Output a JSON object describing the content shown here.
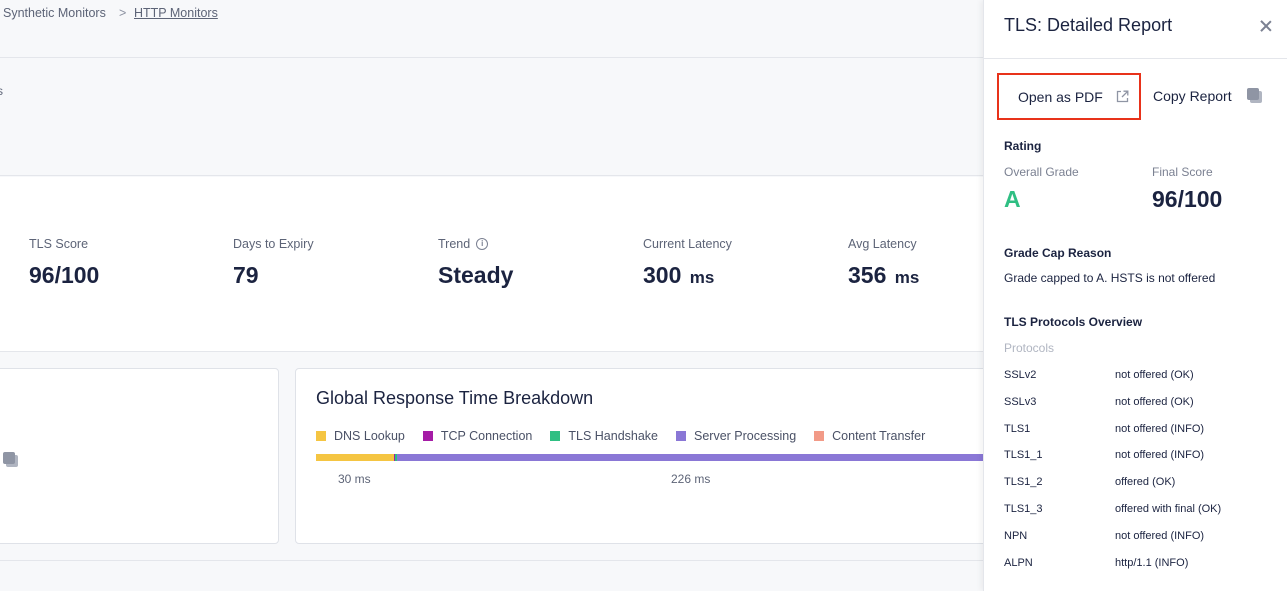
{
  "breadcrumb": {
    "items": [
      "Synthetic Monitors",
      "HTTP Monitors"
    ],
    "separator": ">"
  },
  "header": {
    "clipped_text": "s"
  },
  "stats": [
    {
      "label": "TLS Score",
      "value": "96/100",
      "unit": ""
    },
    {
      "label": "Days to Expiry",
      "value": "79",
      "unit": ""
    },
    {
      "label": "Trend",
      "value": "Steady",
      "unit": "",
      "icon": "info-icon"
    },
    {
      "label": "Current Latency",
      "value": "300",
      "unit": "ms"
    },
    {
      "label": "Avg Latency",
      "value": "356",
      "unit": "ms"
    }
  ],
  "breakdown": {
    "title": "Global Response Time Breakdown",
    "legend": [
      {
        "label": "DNS Lookup",
        "color": "#f5c542"
      },
      {
        "label": "TCP Connection",
        "color": "#a51ca6"
      },
      {
        "label": "TLS Handshake",
        "color": "#2fbf83"
      },
      {
        "label": "Server Processing",
        "color": "#8a77d6"
      },
      {
        "label": "Content Transfer",
        "color": "#f29a87"
      }
    ],
    "bar_labels": [
      "30 ms",
      "226 ms"
    ]
  },
  "drawer": {
    "title": "TLS: Detailed Report",
    "open_pdf_label": "Open as PDF",
    "copy_report_label": "Copy Report",
    "rating": {
      "heading": "Rating",
      "overall_grade_label": "Overall Grade",
      "overall_grade": "A",
      "final_score_label": "Final Score",
      "final_score": "96/100"
    },
    "grade_cap": {
      "heading": "Grade Cap Reason",
      "text": "Grade capped to A. HSTS is not offered"
    },
    "protocols": {
      "heading": "TLS Protocols Overview",
      "subheading": "Protocols",
      "rows": [
        {
          "name": "SSLv2",
          "value": "not offered (OK)"
        },
        {
          "name": "SSLv3",
          "value": "not offered (OK)"
        },
        {
          "name": "TLS1",
          "value": "not offered (INFO)"
        },
        {
          "name": "TLS1_1",
          "value": "not offered (INFO)"
        },
        {
          "name": "TLS1_2",
          "value": "offered (OK)"
        },
        {
          "name": "TLS1_3",
          "value": "offered with final (OK)"
        },
        {
          "name": "NPN",
          "value": "not offered (INFO)"
        },
        {
          "name": "ALPN",
          "value": "http/1.1 (INFO)"
        }
      ]
    }
  }
}
